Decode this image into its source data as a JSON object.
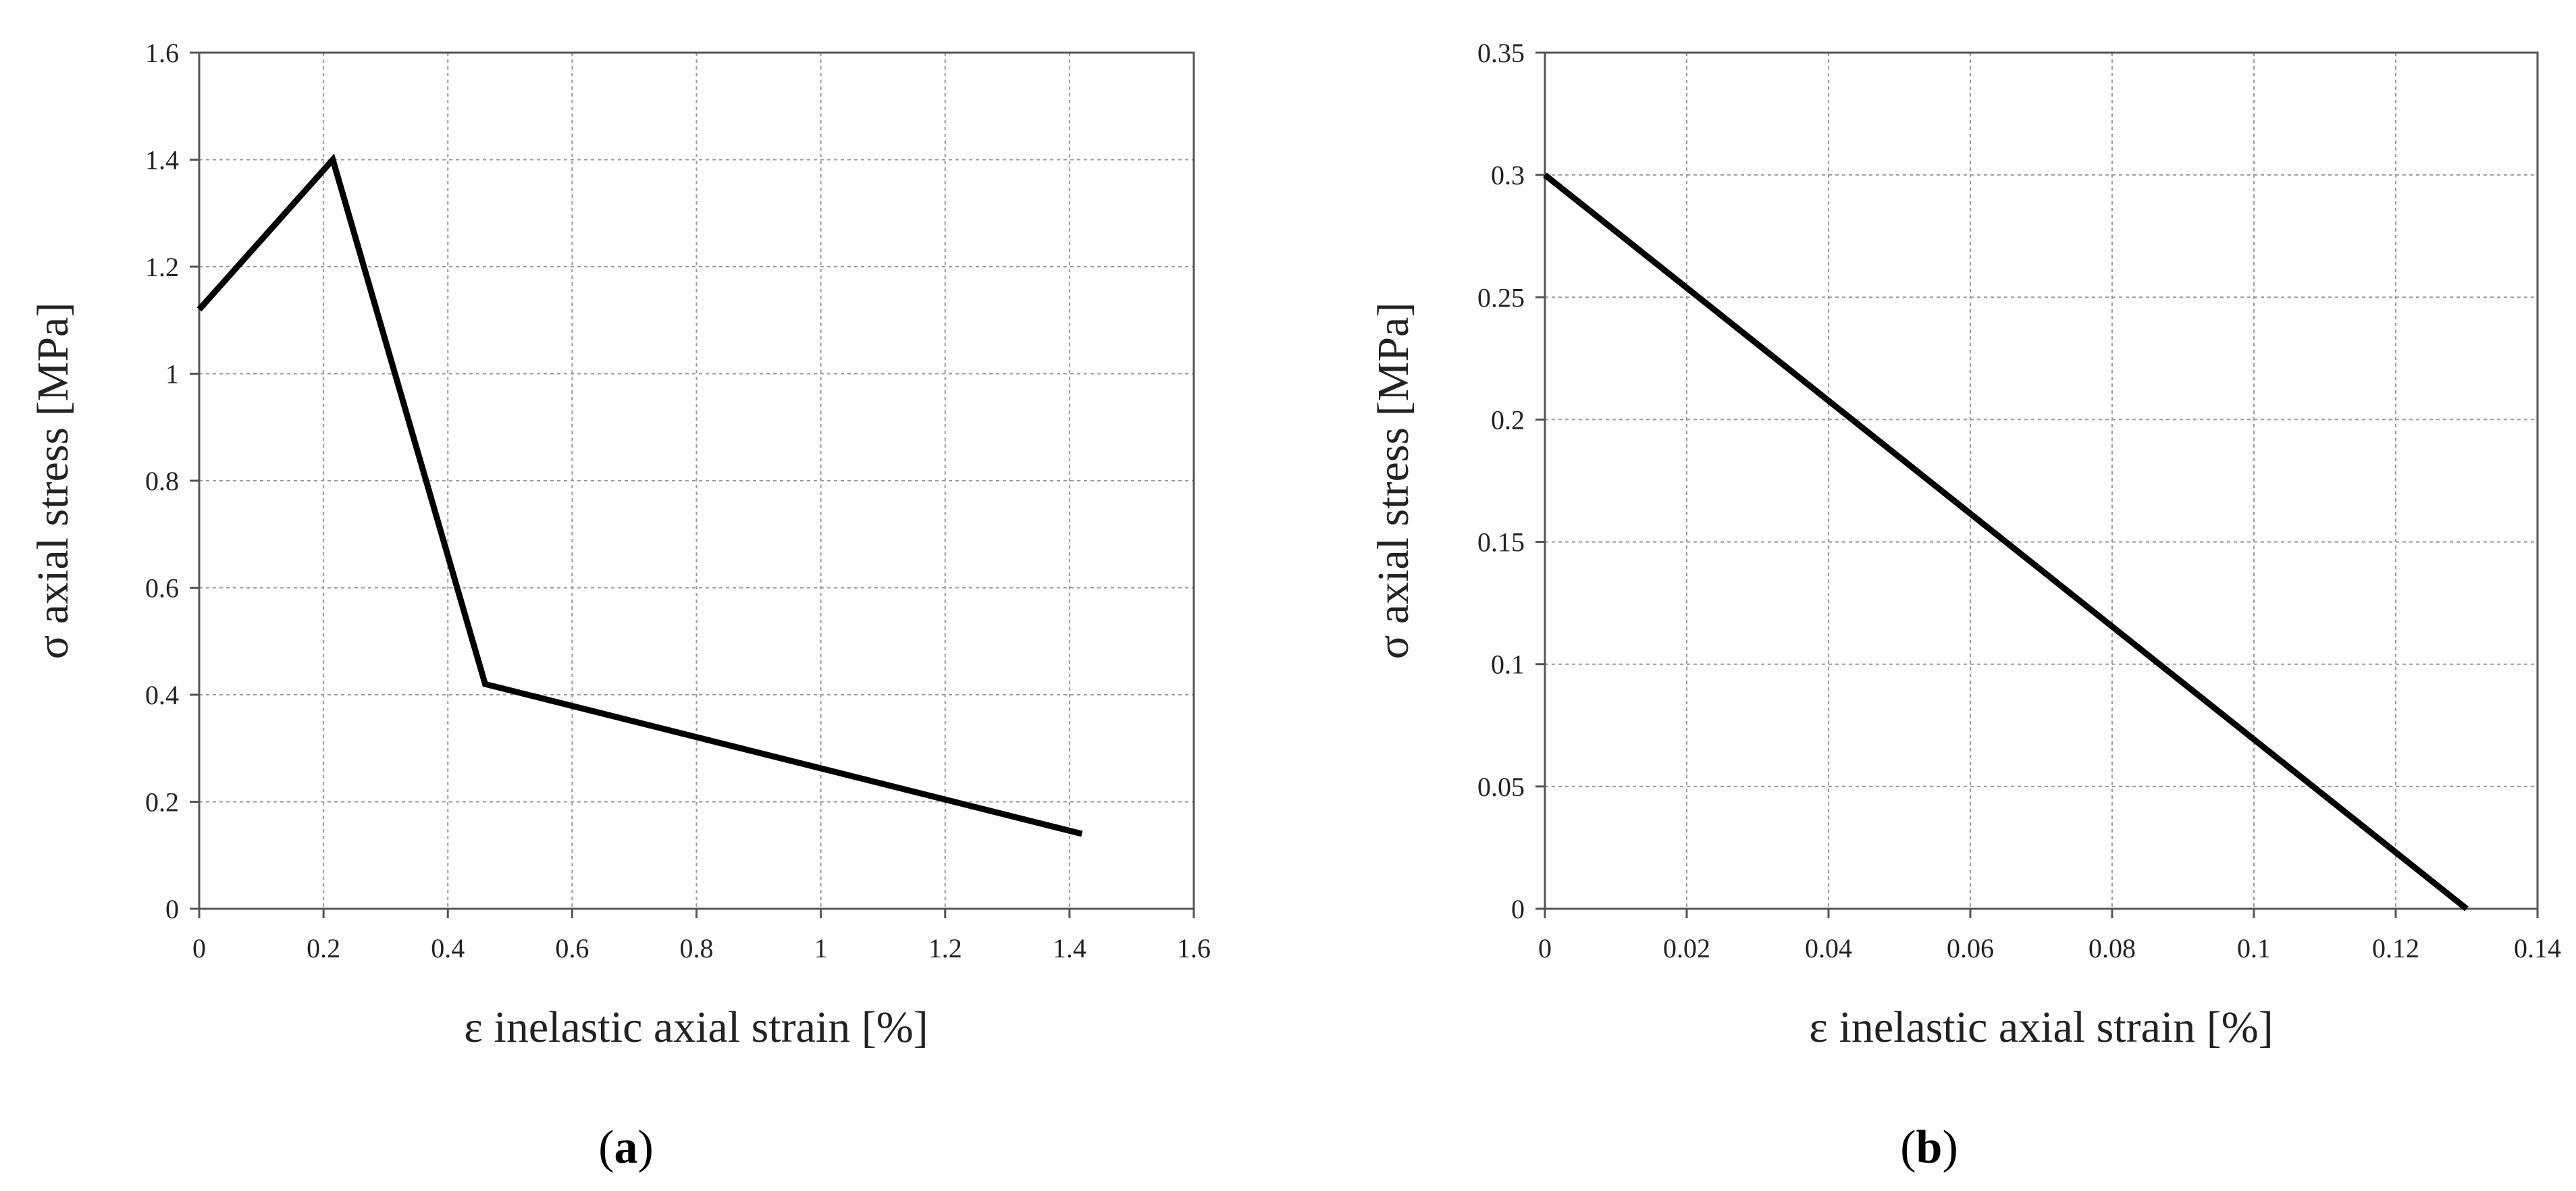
{
  "chart_data": [
    {
      "type": "line",
      "panel": "a",
      "title": "",
      "xlabel": "ε inelastic axial strain [%]",
      "ylabel": "σ axial stress [MPa]",
      "xlim": [
        0,
        1.6
      ],
      "ylim": [
        0,
        1.6
      ],
      "xticks": [
        0,
        0.2,
        0.4,
        0.6,
        0.8,
        1,
        1.2,
        1.4,
        1.6
      ],
      "xtick_labels": [
        "0",
        "0.2",
        "0.4",
        "0.6",
        "0.8",
        "1",
        "1.2",
        "1.4",
        "1.6"
      ],
      "yticks": [
        0,
        0.2,
        0.4,
        0.6,
        0.8,
        1,
        1.2,
        1.4,
        1.6
      ],
      "ytick_labels": [
        "0",
        "0.2",
        "0.4",
        "0.6",
        "0.8",
        "1",
        "1.2",
        "1.4",
        "1.6"
      ],
      "grid": true,
      "legend": "none",
      "series": [
        {
          "x": [
            0,
            0.215,
            0.46,
            1.42
          ],
          "y": [
            1.12,
            1.4,
            0.42,
            0.14
          ],
          "color": "#000000"
        }
      ]
    },
    {
      "type": "line",
      "panel": "b",
      "title": "",
      "xlabel": "ε inelastic axial strain [%]",
      "ylabel": "σ axial stress [MPa]",
      "xlim": [
        0,
        0.14
      ],
      "ylim": [
        0,
        0.35
      ],
      "xticks": [
        0,
        0.02,
        0.04,
        0.06,
        0.08,
        0.1,
        0.12,
        0.14
      ],
      "xtick_labels": [
        "0",
        "0.02",
        "0.04",
        "0.06",
        "0.08",
        "0.1",
        "0.12",
        "0.14"
      ],
      "yticks": [
        0,
        0.05,
        0.1,
        0.15,
        0.2,
        0.25,
        0.3,
        0.35
      ],
      "ytick_labels": [
        "0",
        "0.05",
        "0.1",
        "0.15",
        "0.2",
        "0.25",
        "0.3",
        "0.35"
      ],
      "grid": true,
      "legend": "none",
      "series": [
        {
          "x": [
            0,
            0.13
          ],
          "y": [
            0.3,
            0.0
          ],
          "color": "#000000"
        }
      ]
    }
  ],
  "panel_labels": {
    "a": {
      "open": "(",
      "letter": "a",
      "close": ")"
    },
    "b": {
      "open": "(",
      "letter": "b",
      "close": ")"
    }
  }
}
